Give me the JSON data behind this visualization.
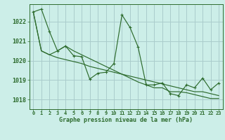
{
  "background_color": "#cceee8",
  "grid_color": "#aacccc",
  "line_color": "#2d6b2d",
  "marker_color": "#2d6b2d",
  "xlabel": "Graphe pression niveau de la mer (hPa)",
  "xlim": [
    -0.5,
    23.5
  ],
  "ylim": [
    1017.5,
    1022.9
  ],
  "yticks": [
    1018,
    1019,
    1020,
    1021,
    1022
  ],
  "xticks": [
    0,
    1,
    2,
    3,
    4,
    5,
    6,
    7,
    8,
    9,
    10,
    11,
    12,
    13,
    14,
    15,
    16,
    17,
    18,
    19,
    20,
    21,
    22,
    23
  ],
  "series": [
    [
      1022.5,
      1022.65,
      1021.5,
      1020.5,
      1020.75,
      1020.25,
      1020.2,
      1019.05,
      1019.35,
      1019.4,
      1019.85,
      1022.35,
      1021.7,
      1020.7,
      1018.75,
      1018.75,
      1018.85,
      1018.3,
      1018.2,
      1018.75,
      1018.6,
      1019.1,
      1018.5,
      1018.85
    ],
    [
      1022.5,
      1020.5,
      1020.3,
      1020.5,
      1020.75,
      1020.5,
      1020.3,
      1020.1,
      1019.9,
      1019.7,
      1019.5,
      1019.3,
      1019.1,
      1018.9,
      1018.75,
      1018.6,
      1018.6,
      1018.4,
      1018.4,
      1018.35,
      1018.25,
      1018.15,
      1018.05,
      1018.05
    ],
    [
      1022.5,
      1020.5,
      1020.3,
      1020.15,
      1020.05,
      1019.95,
      1019.85,
      1019.7,
      1019.6,
      1019.5,
      1019.4,
      1019.3,
      1019.2,
      1019.1,
      1019.0,
      1018.9,
      1018.8,
      1018.7,
      1018.6,
      1018.5,
      1018.4,
      1018.4,
      1018.3,
      1018.2
    ]
  ]
}
